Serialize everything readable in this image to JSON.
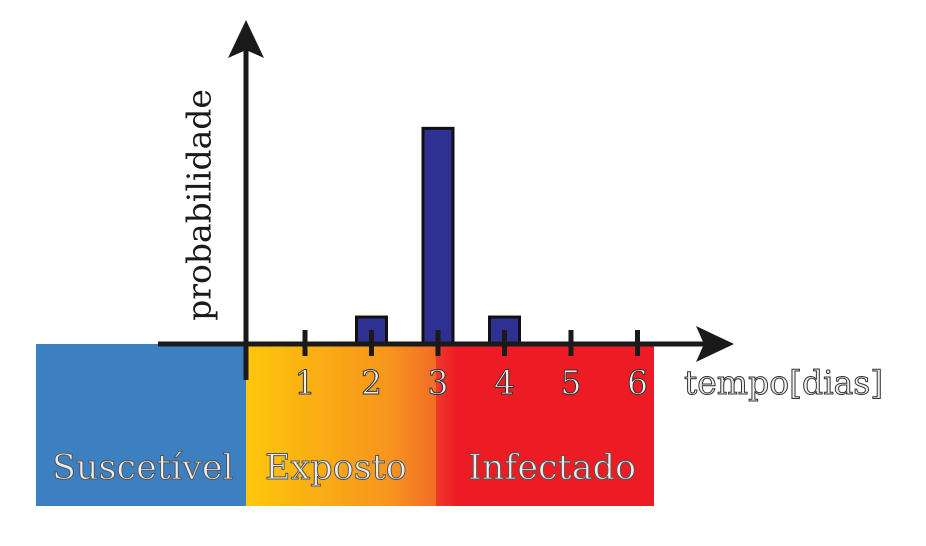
{
  "chart_data": {
    "type": "bar",
    "categories": [
      "1",
      "2",
      "3",
      "4",
      "5",
      "6"
    ],
    "values": [
      0,
      1,
      8,
      1,
      0,
      0
    ],
    "xlabel": "tempo[dias]",
    "ylabel": "probabilidade",
    "ylim": [
      0,
      9.2
    ],
    "grid": false,
    "bar_color": "#2e3192"
  },
  "regions": {
    "suscetivel": "Suscetível",
    "exposto": "Exposto",
    "infectado": "Infectado"
  },
  "colors": {
    "suscetivel": "#3d80c2",
    "exposto": "#f7941d",
    "infectado": "#ed1c24",
    "axis": "#1a1a1a"
  }
}
